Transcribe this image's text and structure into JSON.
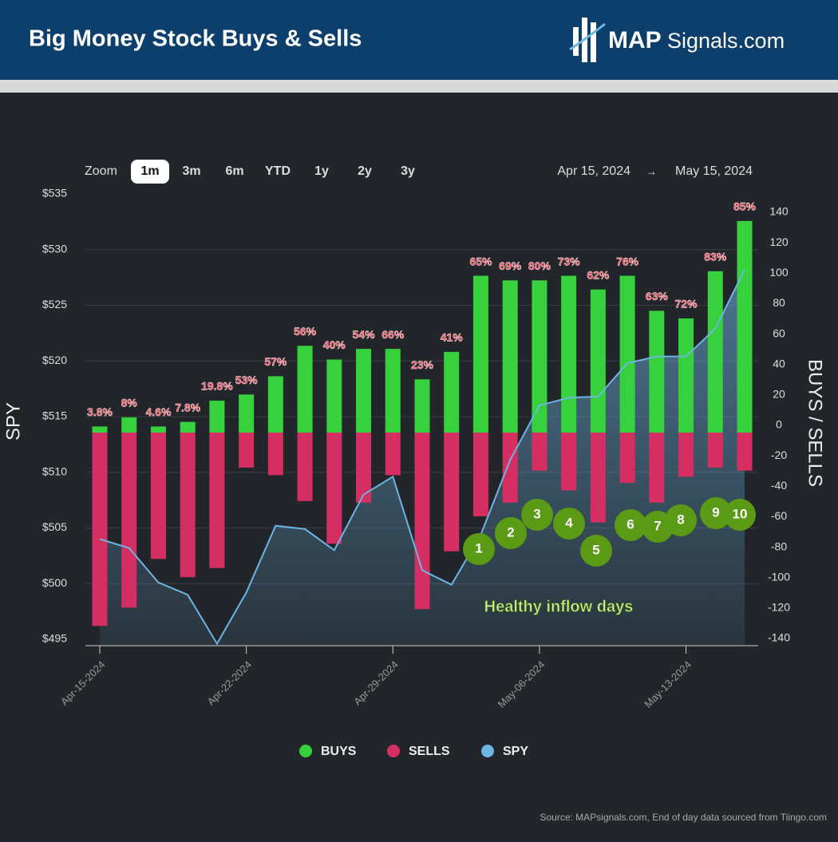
{
  "header": {
    "title": "Big Money Stock Buys & Sells",
    "logo_bold": "MAP",
    "logo_rest": "Signals.com"
  },
  "toolbar": {
    "zoom_label": "Zoom",
    "zoom_options": [
      "1m",
      "3m",
      "6m",
      "YTD",
      "1y",
      "2y",
      "3y"
    ],
    "selected": "1m",
    "range_start": "Apr 15, 2024",
    "range_arrow": "→",
    "range_end": "May 15, 2024"
  },
  "chart_data": {
    "type": "bar",
    "categories": [
      "Apr-15-2024",
      null,
      null,
      null,
      null,
      "Apr-22-2024",
      null,
      null,
      null,
      null,
      "Apr-29-2024",
      null,
      null,
      null,
      null,
      "May-06-2024",
      null,
      null,
      null,
      null,
      "May-13-2024",
      null,
      null
    ],
    "series": [
      {
        "name": "BUYS",
        "color": "#36d13c",
        "values": [
          4,
          10,
          4,
          7,
          21,
          25,
          37,
          57,
          48,
          55,
          55,
          35,
          53,
          103,
          100,
          100,
          103,
          94,
          103,
          80,
          75,
          106,
          139
        ],
        "value_labels": [
          "3.8%",
          "8%",
          "4.6%",
          "7.8%",
          "19.8%",
          "53%",
          "57%",
          "56%",
          "40%",
          "54%",
          "66%",
          "23%",
          "41%",
          "65%",
          "69%",
          "80%",
          "73%",
          "62%",
          "76%",
          "63%",
          "72%",
          "83%",
          "85%"
        ]
      },
      {
        "name": "SELLS",
        "color": "#d42e63",
        "values": [
          -127,
          -115,
          -83,
          -95,
          -89,
          -23,
          -28,
          -45,
          -73,
          -46,
          -28,
          -116,
          -78,
          -55,
          -46,
          -25,
          -38,
          -59,
          -33,
          -46,
          -29,
          -23,
          -25
        ]
      },
      {
        "name": "SPY",
        "color": "#6db6e3",
        "type": "area",
        "axis": "y2",
        "values": [
          504.0,
          503.2,
          500.1,
          499.0,
          494.6,
          499.2,
          505.2,
          504.9,
          503.0,
          508.0,
          509.6,
          501.2,
          499.9,
          504.4,
          511.1,
          516.0,
          516.7,
          516.8,
          519.8,
          520.4,
          520.4,
          522.9,
          528.2
        ]
      }
    ],
    "ylabel": "BUYS / SELLS",
    "ylim": [
      -140,
      140
    ],
    "yticks": [
      140,
      120,
      100,
      80,
      60,
      40,
      20,
      0,
      -20,
      -40,
      -60,
      -80,
      -100,
      -120,
      -140
    ],
    "y2label": "SPY",
    "y2lim": [
      495,
      535
    ],
    "y2ticks": [
      {
        "value": 535,
        "label": "$535"
      },
      {
        "value": 530,
        "label": "$530"
      },
      {
        "value": 525,
        "label": "$525"
      },
      {
        "value": 520,
        "label": "$520"
      },
      {
        "value": 515,
        "label": "$515"
      },
      {
        "value": 510,
        "label": "$510"
      },
      {
        "value": 505,
        "label": "$505"
      },
      {
        "value": 500,
        "label": "$500"
      },
      {
        "value": 495,
        "label": "$495"
      }
    ],
    "grid": true,
    "legend": "bottom",
    "annotations": {
      "markers": [
        "1",
        "2",
        "3",
        "4",
        "5",
        "6",
        "7",
        "8",
        "9",
        "10"
      ],
      "text": "Healthy inflow days"
    }
  },
  "source": "Source: MAPsignals.com, End of day data sourced from Tiingo.com"
}
